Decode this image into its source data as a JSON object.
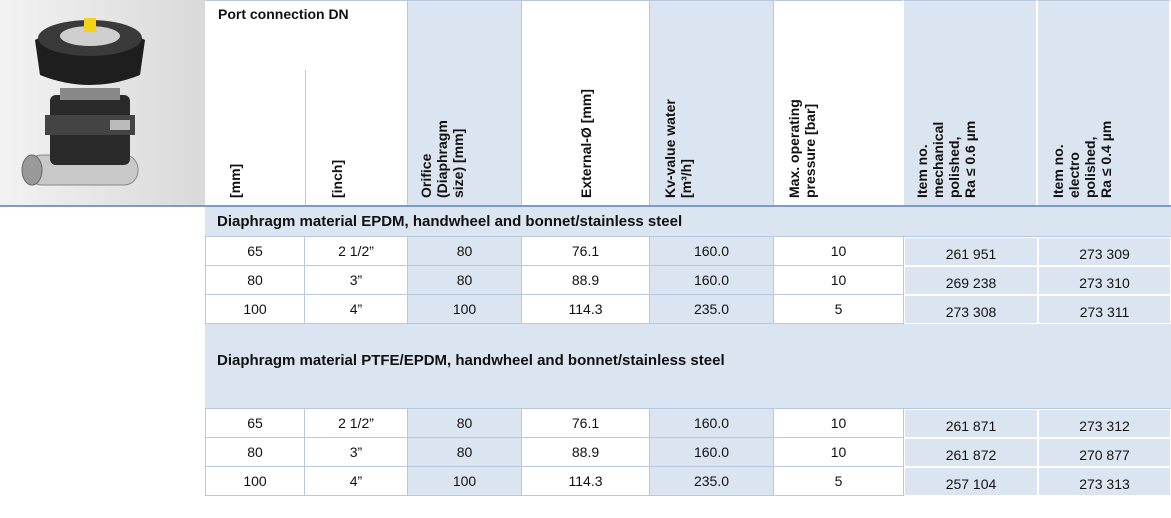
{
  "header": {
    "group": "Port connection DN",
    "columns": [
      [
        "[mm]"
      ],
      [
        "[inch]"
      ],
      [
        "Orifice",
        "(Diaphragm",
        "size) [mm]"
      ],
      [
        "External-Ø [mm]"
      ],
      [
        "Kv-value water",
        "[m³/h]"
      ],
      [
        "Max. operating",
        "pressure [bar]"
      ],
      [
        "Item no.",
        "mechanical",
        "polished,",
        "Ra ≤ 0.6 µm"
      ],
      [
        "Item no.",
        "electro",
        "polished,",
        "Ra ≤ 0.4 µm"
      ]
    ]
  },
  "sections": [
    {
      "title": "Diaphragm material EPDM, handwheel and bonnet/stainless steel",
      "rows": [
        [
          "65",
          "2 1/2”",
          "80",
          "76.1",
          "160.0",
          "10",
          "261 951",
          "273 309"
        ],
        [
          "80",
          "3”",
          "80",
          "88.9",
          "160.0",
          "10",
          "269 238",
          "273 310"
        ],
        [
          "100",
          "4”",
          "100",
          "114.3",
          "235.0",
          "5",
          "273 308",
          "273 311"
        ]
      ]
    },
    {
      "title": "Diaphragm material PTFE/EPDM, handwheel and bonnet/stainless steel",
      "rows": [
        [
          "65",
          "2 1/2”",
          "80",
          "76.1",
          "160.0",
          "10",
          "261 871",
          "273 312"
        ],
        [
          "80",
          "3”",
          "80",
          "88.9",
          "160.0",
          "10",
          "261 872",
          "270 877"
        ],
        [
          "100",
          "4”",
          "100",
          "114.3",
          "235.0",
          "5",
          "257 104",
          "273 313"
        ]
      ]
    }
  ]
}
